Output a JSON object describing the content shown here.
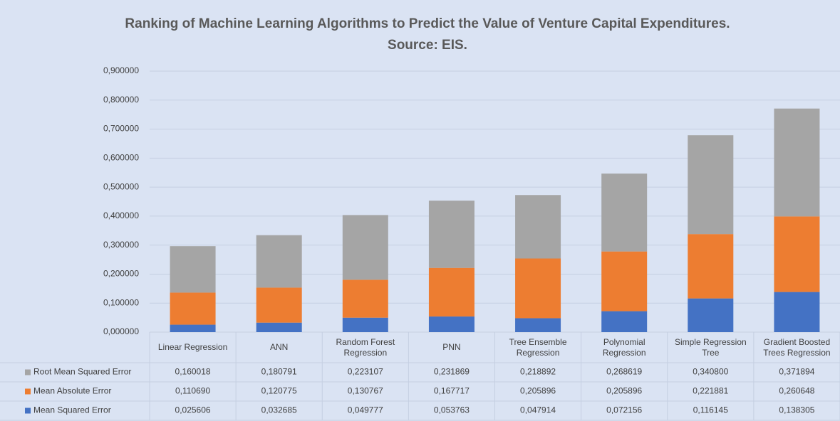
{
  "chart_data": {
    "type": "stacked_bar",
    "title": "Ranking of Machine Learning Algorithms to Predict the Value of Venture Capital Expenditures.",
    "subtitle": "Source: EIS.",
    "categories": [
      "Linear Regression",
      "ANN",
      "Random Forest Regression",
      "PNN",
      "Tree Ensemble Regression",
      "Polynomial Regression",
      "Simple Regression Tree",
      "Gradient Boosted Trees Regression"
    ],
    "series": [
      {
        "name": "Mean Squared Error",
        "color": "#4472c4",
        "values": [
          0.025606,
          0.032685,
          0.049777,
          0.053763,
          0.047914,
          0.072156,
          0.116145,
          0.138305
        ],
        "value_labels": [
          "0,025606",
          "0,032685",
          "0,049777",
          "0,053763",
          "0,047914",
          "0,072156",
          "0,116145",
          "0,138305"
        ]
      },
      {
        "name": "Mean Absolute Error",
        "color": "#ed7d31",
        "values": [
          0.11069,
          0.120775,
          0.130767,
          0.167717,
          0.205896,
          0.205896,
          0.221881,
          0.260648
        ],
        "value_labels": [
          "0,110690",
          "0,120775",
          "0,130767",
          "0,167717",
          "0,205896",
          "0,205896",
          "0,221881",
          "0,260648"
        ]
      },
      {
        "name": "Root Mean Squared Error",
        "color": "#a5a5a5",
        "values": [
          0.160018,
          0.180791,
          0.223107,
          0.231869,
          0.218892,
          0.268619,
          0.3408,
          0.371894
        ],
        "value_labels": [
          "0,160018",
          "0,180791",
          "0,223107",
          "0,231869",
          "0,218892",
          "0,268619",
          "0,340800",
          "0,371894"
        ]
      }
    ],
    "ylim": [
      0,
      0.9
    ],
    "yticks": [
      {
        "value": 0,
        "label": "0,000000"
      },
      {
        "value": 0.1,
        "label": "0,100000"
      },
      {
        "value": 0.2,
        "label": "0,200000"
      },
      {
        "value": 0.3,
        "label": "0,300000"
      },
      {
        "value": 0.4,
        "label": "0,400000"
      },
      {
        "value": 0.5,
        "label": "0,500000"
      },
      {
        "value": 0.6,
        "label": "0,600000"
      },
      {
        "value": 0.7,
        "label": "0,700000"
      },
      {
        "value": 0.8,
        "label": "0,800000"
      },
      {
        "value": 0.9,
        "label": "0,900000"
      }
    ],
    "grid": true
  }
}
